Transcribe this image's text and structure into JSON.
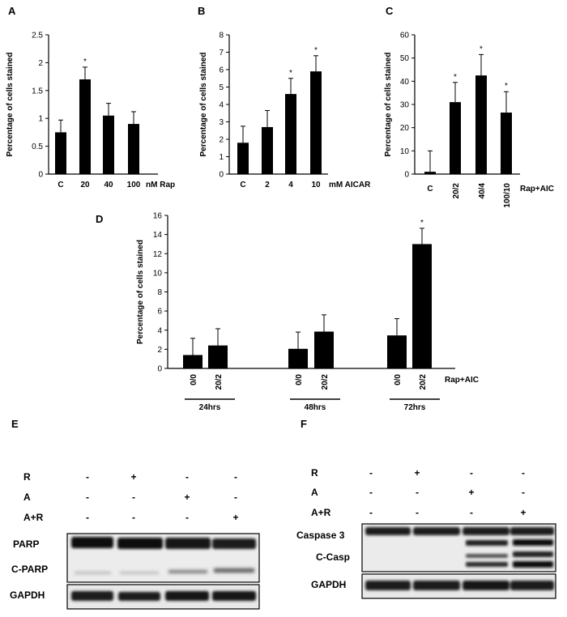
{
  "panel_letters": [
    "A",
    "B",
    "C",
    "D",
    "E",
    "F"
  ],
  "chart_data": [
    {
      "panel": "A",
      "type": "bar",
      "categories": [
        "C",
        "20",
        "40",
        "100"
      ],
      "values": [
        0.75,
        1.7,
        1.05,
        0.9
      ],
      "errors": [
        0.22,
        0.22,
        0.22,
        0.22
      ],
      "significance": [
        "",
        "*",
        "",
        ""
      ],
      "ylabel": "Percentage of cells stained",
      "xunit": "nM Rap",
      "ylim": [
        0,
        2.5
      ],
      "yticks": [
        0,
        0.5,
        1,
        1.5,
        2,
        2.5
      ],
      "ytick_labels": [
        "0",
        "0.5",
        "1",
        "1.5",
        "2",
        "2.5"
      ]
    },
    {
      "panel": "B",
      "type": "bar",
      "categories": [
        "C",
        "2",
        "4",
        "10"
      ],
      "values": [
        1.8,
        2.7,
        4.6,
        5.9
      ],
      "errors": [
        0.95,
        0.95,
        0.9,
        0.9
      ],
      "significance": [
        "",
        "",
        "*",
        "*"
      ],
      "ylabel": "Percentage of cells stained",
      "xunit": "mM AICAR",
      "ylim": [
        0,
        8
      ],
      "yticks": [
        0,
        1,
        2,
        3,
        4,
        5,
        6,
        7,
        8
      ],
      "ytick_labels": [
        "0",
        "1",
        "2",
        "3",
        "4",
        "5",
        "6",
        "7",
        "8"
      ]
    },
    {
      "panel": "C",
      "type": "bar",
      "categories": [
        "C",
        "20/2",
        "40/4",
        "100/10"
      ],
      "values": [
        1,
        31,
        42.5,
        26.5
      ],
      "errors": [
        9,
        8.5,
        9,
        9
      ],
      "significance": [
        "",
        "*",
        "*",
        "*"
      ],
      "ylabel": "Percentage of cells stained",
      "xunit": "Rap+AIC",
      "ylim": [
        0,
        60
      ],
      "yticks": [
        0,
        10,
        20,
        30,
        40,
        50,
        60
      ],
      "ytick_labels": [
        "0",
        "10",
        "20",
        "30",
        "40",
        "50",
        "60"
      ]
    },
    {
      "panel": "D",
      "type": "bar",
      "categories": [
        "0/0",
        "20/2",
        "0/0",
        "20/2",
        "0/0",
        "20/2"
      ],
      "values": [
        1.4,
        2.4,
        2.05,
        3.85,
        3.45,
        13
      ],
      "errors": [
        1.75,
        1.75,
        1.75,
        1.75,
        1.75,
        1.65
      ],
      "significance": [
        "",
        "",
        "",
        "",
        "",
        "*"
      ],
      "groups": [
        "24hrs",
        "48hrs",
        "72hrs"
      ],
      "ylabel": "Percentage of cells stained",
      "xunit": "Rap+AIC",
      "ylim": [
        0,
        16
      ],
      "yticks": [
        0,
        2,
        4,
        6,
        8,
        10,
        12,
        14,
        16
      ],
      "ytick_labels": [
        "0",
        "2",
        "4",
        "6",
        "8",
        "10",
        "12",
        "14",
        "16"
      ]
    }
  ],
  "blot_E": {
    "rows": [
      {
        "label": "R",
        "signs": [
          "-",
          "+",
          "-",
          "-"
        ]
      },
      {
        "label": "A",
        "signs": [
          "-",
          "-",
          "+",
          "-"
        ]
      },
      {
        "label": "A+R",
        "signs": [
          "-",
          "-",
          "-",
          "+"
        ]
      }
    ],
    "bands": [
      "PARP",
      "C-PARP",
      "GAPDH"
    ]
  },
  "blot_F": {
    "rows": [
      {
        "label": "R",
        "signs": [
          "-",
          "+",
          "-",
          "-"
        ]
      },
      {
        "label": "A",
        "signs": [
          "-",
          "-",
          "+",
          "-"
        ]
      },
      {
        "label": "A+R",
        "signs": [
          "-",
          "-",
          "-",
          "+"
        ]
      }
    ],
    "bands": [
      "Caspase 3",
      "C-Casp",
      "GAPDH"
    ]
  }
}
